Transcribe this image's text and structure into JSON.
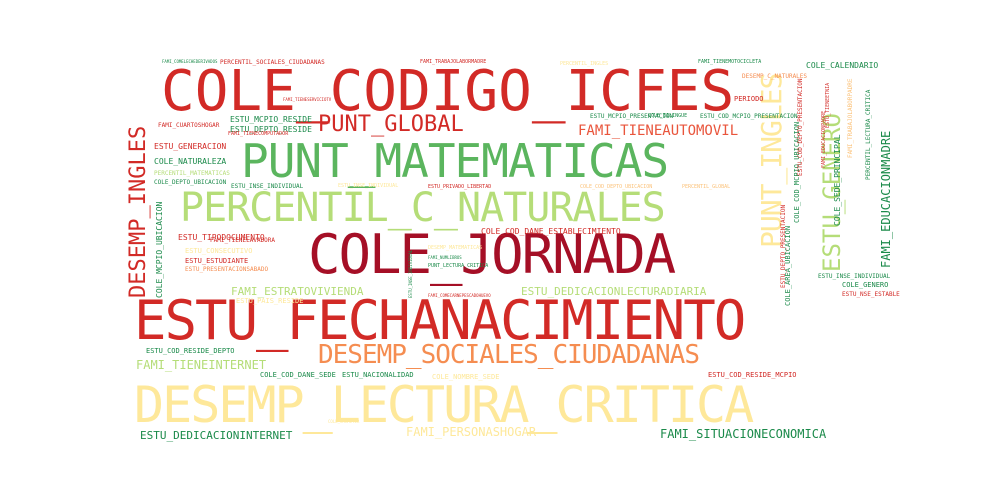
{
  "palette": {
    "dark_red": "#a50f26",
    "red": "#d22a26",
    "orange_red": "#e9553c",
    "orange": "#f58d51",
    "peach": "#fbc27a",
    "yellow": "#fee89a",
    "light_green": "#b5dd78",
    "green": "#5bb55e",
    "dark_green": "#1b8a4a"
  },
  "words": [
    {
      "text": "COLE_CODIGO_ICFES",
      "color": "#d22a26",
      "orientation": "horizontal"
    },
    {
      "text": "PUNT_MATEMATICAS",
      "color": "#5bb55e",
      "orientation": "horizontal"
    },
    {
      "text": "PERCENTIL_C_NATURALES",
      "color": "#b5dd78",
      "orientation": "horizontal"
    },
    {
      "text": "COLE_JORNADA",
      "color": "#a50f26",
      "orientation": "horizontal"
    },
    {
      "text": "ESTU_FECHANACIMIENTO",
      "color": "#d22a26",
      "orientation": "horizontal"
    },
    {
      "text": "DESEMP_LECTURA_CRITICA",
      "color": "#fee89a",
      "orientation": "horizontal"
    },
    {
      "text": "DESEMP_SOCIALES_CIUDADANAS",
      "color": "#f58d51",
      "orientation": "horizontal"
    },
    {
      "text": "PUNT_GLOBAL",
      "color": "#d22a26",
      "orientation": "horizontal"
    },
    {
      "text": "DESEMP_INGLES",
      "color": "#d22a26",
      "orientation": "vertical"
    },
    {
      "text": "PUNT_INGLES",
      "color": "#fee89a",
      "orientation": "vertical"
    },
    {
      "text": "ESTU_GENERO",
      "color": "#b5dd78",
      "orientation": "vertical"
    },
    {
      "text": "FAMI_TIENEAUTOMOVIL",
      "color": "#e9553c",
      "orientation": "horizontal"
    },
    {
      "text": "FAMI_EDUCACIONMADRE",
      "color": "#1b8a4a",
      "orientation": "vertical"
    },
    {
      "text": "FAMI_TIENEINTERNET",
      "color": "#b5dd78",
      "orientation": "horizontal"
    },
    {
      "text": "FAMI_PERSONASHOGAR",
      "color": "#fee89a",
      "orientation": "horizontal"
    },
    {
      "text": "FAMI_SITUACIONECONOMICA",
      "color": "#1b8a4a",
      "orientation": "horizontal"
    },
    {
      "text": "ESTU_DEDICACIONINTERNET",
      "color": "#1b8a4a",
      "orientation": "horizontal"
    },
    {
      "text": "FAMI_ESTRATOVIVIENDA",
      "color": "#b5dd78",
      "orientation": "horizontal"
    },
    {
      "text": "ESTU_DEDICACIONLECTURADIARIA",
      "color": "#b5dd78",
      "orientation": "horizontal"
    },
    {
      "text": "COLE_COD_DANE_ESTABLECIMIENTO",
      "color": "#d22a26",
      "orientation": "horizontal"
    },
    {
      "text": "ESTU_MCPIO_RESIDE",
      "color": "#1b8a4a",
      "orientation": "horizontal"
    },
    {
      "text": "ESTU_DEPTO_RESIDE",
      "color": "#1b8a4a",
      "orientation": "horizontal"
    },
    {
      "text": "ESTU_GENERACION",
      "color": "#d22a26",
      "orientation": "horizontal"
    },
    {
      "text": "COLE_NATURALEZA",
      "color": "#1b8a4a",
      "orientation": "horizontal"
    },
    {
      "text": "PERCENTIL_MATEMATICAS",
      "color": "#b5dd78",
      "orientation": "horizontal"
    },
    {
      "text": "COLE_DEPTO_UBICACION",
      "color": "#1b8a4a",
      "orientation": "horizontal"
    },
    {
      "text": "ESTU_INSE_INDIVIDUAL",
      "color": "#1b8a4a",
      "orientation": "horizontal"
    },
    {
      "text": "COLE_MCPIO_UBICACION",
      "color": "#1b8a4a",
      "orientation": "vertical"
    },
    {
      "text": "ESTU_TIPODOCUMENTO",
      "color": "#d22a26",
      "orientation": "horizontal"
    },
    {
      "text": "FAMI_TIENELAVADORA",
      "color": "#d22a26",
      "orientation": "horizontal"
    },
    {
      "text": "ESTU_CONSECUTIVO",
      "color": "#fee89a",
      "orientation": "horizontal"
    },
    {
      "text": "ESTU_ESTUDIANTE",
      "color": "#d22a26",
      "orientation": "horizontal"
    },
    {
      "text": "ESTU_PRESENTACIONSABADO",
      "color": "#f58d51",
      "orientation": "horizontal"
    },
    {
      "text": "ESTU_PAIS_RESIDE",
      "color": "#fee89a",
      "orientation": "horizontal"
    },
    {
      "text": "COLE_CALENDARIO",
      "color": "#1b8a4a",
      "orientation": "horizontal"
    },
    {
      "text": "COLE_SEDE_PRINCIPAL",
      "color": "#1b8a4a",
      "orientation": "vertical"
    },
    {
      "text": "COLE_AREA_UBICACION",
      "color": "#1b8a4a",
      "orientation": "vertical"
    },
    {
      "text": "COLE_COD_MCPIO_UBICACION",
      "color": "#1b8a4a",
      "orientation": "vertical"
    },
    {
      "text": "PERIODO",
      "color": "#d22a26",
      "orientation": "horizontal"
    },
    {
      "text": "COLE_GENERO",
      "color": "#1b8a4a",
      "orientation": "horizontal"
    },
    {
      "text": "ESTU_INSE_INDIVIDUAL",
      "color": "#1b8a4a",
      "orientation": "horizontal"
    },
    {
      "text": "ESTU_NSE_ESTABLECIMIENTO",
      "color": "#d22a26",
      "orientation": "horizontal"
    },
    {
      "text": "ESTU_COD_RESIDE_DEPTO",
      "color": "#1b8a4a",
      "orientation": "horizontal"
    },
    {
      "text": "COLE_COD_DANE_SEDE",
      "color": "#1b8a4a",
      "orientation": "horizontal"
    },
    {
      "text": "ESTU_NACIONALIDAD",
      "color": "#1b8a4a",
      "orientation": "horizontal"
    },
    {
      "text": "ESTU_COD_RESIDE_MCPIO",
      "color": "#d22a26",
      "orientation": "horizontal"
    },
    {
      "text": "COLE_NOMBRE_SEDE",
      "color": "#fee89a",
      "orientation": "horizontal"
    },
    {
      "text": "ESTU_MCPIO_PRESENTACION",
      "color": "#1b8a4a",
      "orientation": "horizontal"
    },
    {
      "text": "ESTU_COD_MCPIO_PRESENTACION",
      "color": "#1b8a4a",
      "orientation": "horizontal"
    },
    {
      "text": "FAMI_CUARTOSHOGAR",
      "color": "#d22a26",
      "orientation": "horizontal"
    },
    {
      "text": "DESEMP_C_NATURALES",
      "color": "#f58d51",
      "orientation": "horizontal"
    },
    {
      "text": "PERCENTIL_SOCIALES_CIUDADANAS",
      "color": "#d22a26",
      "orientation": "horizontal"
    },
    {
      "text": "FAMI_TRABAJOLABORMADRE",
      "color": "#d22a26",
      "orientation": "horizontal"
    },
    {
      "text": "FAMI_TIENEMOTOCICLETA",
      "color": "#1b8a4a",
      "orientation": "horizontal"
    },
    {
      "text": "FAMI_COMELECHEDERIVADOS",
      "color": "#1b8a4a",
      "orientation": "horizontal"
    },
    {
      "text": "FAMI_TIENESERVICIOTV",
      "color": "#d22a26",
      "orientation": "horizontal"
    },
    {
      "text": "FAMI_TIENECOMPUTADOR",
      "color": "#d22a26",
      "orientation": "horizontal"
    },
    {
      "text": "ESTU_PRIVADO_LIBERTAD",
      "color": "#d22a26",
      "orientation": "horizontal"
    },
    {
      "text": "DESEMP_MATEMATICAS",
      "color": "#fee89a",
      "orientation": "horizontal"
    },
    {
      "text": "FAMI_NUMLIBROS",
      "color": "#1b8a4a",
      "orientation": "horizontal"
    },
    {
      "text": "PUNT_LECTURA_CRITICA",
      "color": "#1b8a4a",
      "orientation": "horizontal"
    },
    {
      "text": "FAMI_COMECARNEPESCADOHUEVO",
      "color": "#d22a26",
      "orientation": "horizontal"
    },
    {
      "text": "COLE_CARACTER",
      "color": "#fee89a",
      "orientation": "horizontal"
    },
    {
      "text": "COLE_COD_DEPTO_UBICACION",
      "color": "#fbc27a",
      "orientation": "horizontal"
    },
    {
      "text": "PERCENTIL_GLOBAL",
      "color": "#fbc27a",
      "orientation": "horizontal"
    },
    {
      "text": "ESTU_DEPTO_PRESENTACION",
      "color": "#d22a26",
      "orientation": "vertical"
    },
    {
      "text": "ESTU_COD_DEPTO_PRESENTACION",
      "color": "#d22a26",
      "orientation": "vertical"
    },
    {
      "text": "PERCENTIL_LECTURA_CRITICA",
      "color": "#1b8a4a",
      "orientation": "vertical"
    },
    {
      "text": "FAMI_TRABAJOLABORPADRE",
      "color": "#fbc27a",
      "orientation": "vertical"
    },
    {
      "text": "ESTU_TIENEETNIA",
      "color": "#d22a26",
      "orientation": "vertical"
    },
    {
      "text": "FAMI_EDUCACIONPADRE",
      "color": "#d22a26",
      "orientation": "vertical"
    },
    {
      "text": "PERCENTIL_INGLES",
      "color": "#fee89a",
      "orientation": "horizontal"
    },
    {
      "text": "ESTU_INSE_INDIVIDUAL",
      "color": "#fee89a",
      "orientation": "horizontal"
    },
    {
      "text": "COLE_BILINGUE",
      "color": "#1b8a4a",
      "orientation": "horizontal"
    },
    {
      "text": "ESTU_INSE_INDIVIDUAL",
      "color": "#1b8a4a",
      "orientation": "vertical"
    }
  ]
}
